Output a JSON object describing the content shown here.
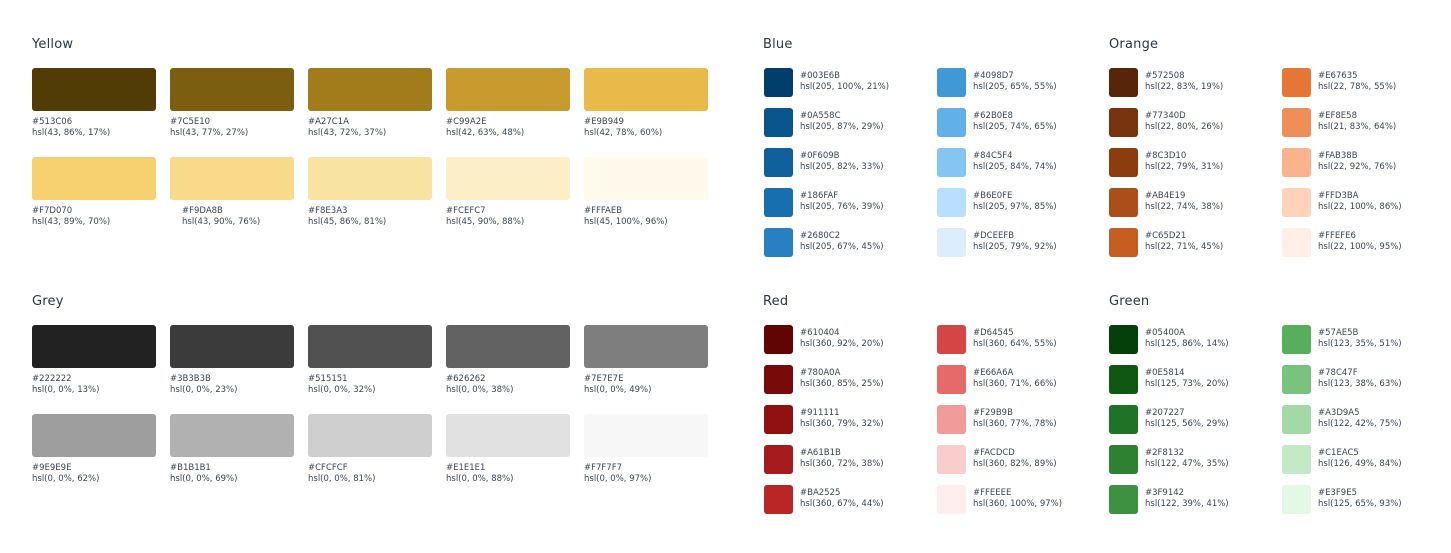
{
  "palettes": {
    "yellow": {
      "title": "Yellow",
      "swatches": [
        {
          "hex": "#513C06",
          "hsl": "hsl(43, 86%, 17%)"
        },
        {
          "hex": "#7C5E10",
          "hsl": "hsl(43, 77%, 27%)"
        },
        {
          "hex": "#A27C1A",
          "hsl": "hsl(43, 72%, 37%)"
        },
        {
          "hex": "#C99A2E",
          "hsl": "hsl(42, 63%, 48%)"
        },
        {
          "hex": "#E9B949",
          "hsl": "hsl(42, 78%, 60%)"
        },
        {
          "hex": "#F7D070",
          "hsl": "hsl(43, 89%, 70%)"
        },
        {
          "hex": "#F9DA8B",
          "hsl": "hsl(43, 90%, 76%)"
        },
        {
          "hex": "#F8E3A3",
          "hsl": "hsl(45, 86%, 81%)"
        },
        {
          "hex": "#FCEFC7",
          "hsl": "hsl(45, 90%, 88%)"
        },
        {
          "hex": "#FFFAEB",
          "hsl": "hsl(45, 100%, 96%)"
        }
      ]
    },
    "grey": {
      "title": "Grey",
      "swatches": [
        {
          "hex": "#222222",
          "hsl": "hsl(0, 0%, 13%)"
        },
        {
          "hex": "#3B3B3B",
          "hsl": "hsl(0, 0%, 23%)"
        },
        {
          "hex": "#515151",
          "hsl": "hsl(0, 0%, 32%)"
        },
        {
          "hex": "#626262",
          "hsl": "hsl(0, 0%, 38%)"
        },
        {
          "hex": "#7E7E7E",
          "hsl": "hsl(0, 0%, 49%)"
        },
        {
          "hex": "#9E9E9E",
          "hsl": "hsl(0, 0%, 62%)"
        },
        {
          "hex": "#B1B1B1",
          "hsl": "hsl(0, 0%, 69%)"
        },
        {
          "hex": "#CFCFCF",
          "hsl": "hsl(0, 0%, 81%)"
        },
        {
          "hex": "#E1E1E1",
          "hsl": "hsl(0, 0%, 88%)"
        },
        {
          "hex": "#F7F7F7",
          "hsl": "hsl(0, 0%, 97%)"
        }
      ]
    },
    "blue": {
      "title": "Blue",
      "swatches": [
        {
          "hex": "#003E6B",
          "hsl": "hsl(205, 100%, 21%)"
        },
        {
          "hex": "#0A558C",
          "hsl": "hsl(205, 87%, 29%)"
        },
        {
          "hex": "#0F609B",
          "hsl": "hsl(205, 82%, 33%)"
        },
        {
          "hex": "#186FAF",
          "hsl": "hsl(205, 76%, 39%)"
        },
        {
          "hex": "#2680C2",
          "hsl": "hsl(205, 67%, 45%)"
        },
        {
          "hex": "#4098D7",
          "hsl": "hsl(205, 65%, 55%)"
        },
        {
          "hex": "#62B0E8",
          "hsl": "hsl(205, 74%, 65%)"
        },
        {
          "hex": "#84C5F4",
          "hsl": "hsl(205, 84%, 74%)"
        },
        {
          "hex": "#B6E0FE",
          "hsl": "hsl(205, 97%, 85%)"
        },
        {
          "hex": "#DCEEFB",
          "hsl": "hsl(205, 79%, 92%)"
        }
      ]
    },
    "orange": {
      "title": "Orange",
      "swatches": [
        {
          "hex": "#572508",
          "hsl": "hsl(22, 83%, 19%)"
        },
        {
          "hex": "#77340D",
          "hsl": "hsl(22, 80%, 26%)"
        },
        {
          "hex": "#8C3D10",
          "hsl": "hsl(22, 79%, 31%)"
        },
        {
          "hex": "#AB4E19",
          "hsl": "hsl(22, 74%, 38%)"
        },
        {
          "hex": "#C65D21",
          "hsl": "hsl(22, 71%, 45%)"
        },
        {
          "hex": "#E67635",
          "hsl": "hsl(22, 78%, 55%)"
        },
        {
          "hex": "#EF8E58",
          "hsl": "hsl(21, 83%, 64%)"
        },
        {
          "hex": "#FAB38B",
          "hsl": "hsl(22, 92%, 76%)"
        },
        {
          "hex": "#FFD3BA",
          "hsl": "hsl(22, 100%, 86%)"
        },
        {
          "hex": "#FFEFE6",
          "hsl": "hsl(22, 100%, 95%)"
        }
      ]
    },
    "red": {
      "title": "Red",
      "swatches": [
        {
          "hex": "#610404",
          "hsl": "hsl(360, 92%, 20%)"
        },
        {
          "hex": "#780A0A",
          "hsl": "hsl(360, 85%, 25%)"
        },
        {
          "hex": "#911111",
          "hsl": "hsl(360, 79%, 32%)"
        },
        {
          "hex": "#A61B1B",
          "hsl": "hsl(360, 72%, 38%)"
        },
        {
          "hex": "#BA2525",
          "hsl": "hsl(360, 67%, 44%)"
        },
        {
          "hex": "#D64545",
          "hsl": "hsl(360, 64%, 55%)"
        },
        {
          "hex": "#E66A6A",
          "hsl": "hsl(360, 71%, 66%)"
        },
        {
          "hex": "#F29B9B",
          "hsl": "hsl(360, 77%, 78%)"
        },
        {
          "hex": "#FACDCD",
          "hsl": "hsl(360, 82%, 89%)"
        },
        {
          "hex": "#FFEEEE",
          "hsl": "hsl(360, 100%, 97%)"
        }
      ]
    },
    "green": {
      "title": "Green",
      "swatches": [
        {
          "hex": "#05400A",
          "hsl": "hsl(125, 86%, 14%)"
        },
        {
          "hex": "#0E5814",
          "hsl": "hsl(125, 73%, 20%)"
        },
        {
          "hex": "#207227",
          "hsl": "hsl(125, 56%, 29%)"
        },
        {
          "hex": "#2F8132",
          "hsl": "hsl(122, 47%, 35%)"
        },
        {
          "hex": "#3F9142",
          "hsl": "hsl(122, 39%, 41%)"
        },
        {
          "hex": "#57AE5B",
          "hsl": "hsl(123, 35%, 51%)"
        },
        {
          "hex": "#78C47F",
          "hsl": "hsl(123, 38%, 63%)"
        },
        {
          "hex": "#A3D9A5",
          "hsl": "hsl(122, 42%, 75%)"
        },
        {
          "hex": "#C1EAC5",
          "hsl": "hsl(126, 49%, 84%)"
        },
        {
          "hex": "#E3F9E5",
          "hsl": "hsl(125, 65%, 93%)"
        }
      ]
    }
  }
}
